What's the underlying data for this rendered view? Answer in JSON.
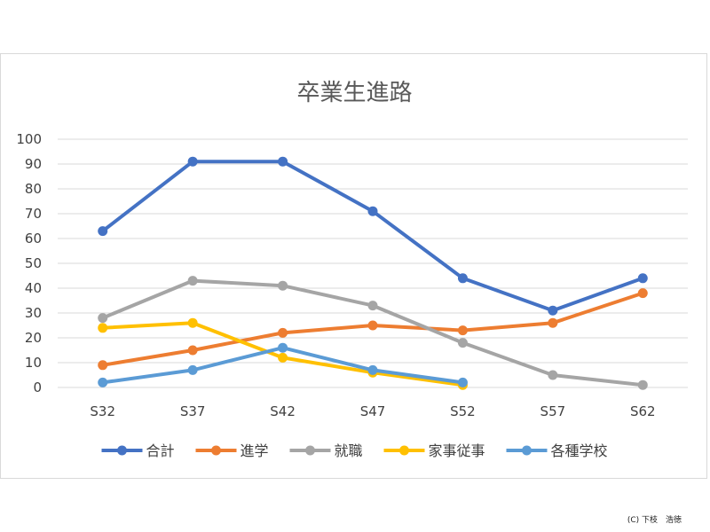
{
  "chart_data": {
    "type": "line",
    "title": "卒業生進路",
    "categories": [
      "S32",
      "S37",
      "S42",
      "S47",
      "S52",
      "S57",
      "S62"
    ],
    "ylim": [
      0,
      100
    ],
    "yticks": [
      0,
      10,
      20,
      30,
      40,
      50,
      60,
      70,
      80,
      90,
      100
    ],
    "grid": true,
    "legend_position": "bottom",
    "series": [
      {
        "name": "合計",
        "color": "#4472C4",
        "values": [
          63,
          91,
          91,
          71,
          44,
          31,
          44
        ]
      },
      {
        "name": "進学",
        "color": "#ED7D31",
        "values": [
          9,
          15,
          22,
          25,
          23,
          26,
          38
        ]
      },
      {
        "name": "就職",
        "color": "#A5A5A5",
        "values": [
          28,
          43,
          41,
          33,
          18,
          5,
          1
        ]
      },
      {
        "name": "家事従事",
        "color": "#FFC000",
        "values": [
          24,
          26,
          12,
          6,
          1,
          null,
          null
        ]
      },
      {
        "name": "各種学校",
        "color": "#5B9BD5",
        "values": [
          2,
          7,
          16,
          7,
          2,
          null,
          null
        ]
      }
    ]
  },
  "credit": "(C) 下枝　浩徳"
}
